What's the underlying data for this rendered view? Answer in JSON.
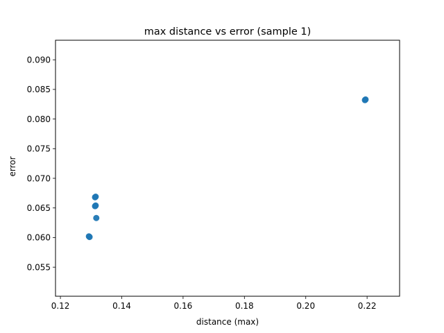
{
  "chart_data": {
    "type": "scatter",
    "title": "max distance vs error (sample 1)",
    "xlabel": "distance (max)",
    "ylabel": "error",
    "xlim": [
      0.1184,
      0.2306
    ],
    "ylim": [
      0.0501,
      0.0933
    ],
    "x_ticks": [
      0.12,
      0.14,
      0.16,
      0.18,
      0.2,
      0.22
    ],
    "x_tick_labels": [
      "0.12",
      "0.14",
      "0.16",
      "0.18",
      "0.20",
      "0.22"
    ],
    "y_ticks": [
      0.055,
      0.06,
      0.065,
      0.07,
      0.075,
      0.08,
      0.085,
      0.09
    ],
    "y_tick_labels": [
      "0.055",
      "0.060",
      "0.065",
      "0.070",
      "0.075",
      "0.080",
      "0.085",
      "0.090"
    ],
    "grid": false,
    "marker_color": "#1f77b4",
    "points": [
      {
        "x": 0.1293,
        "y": 0.0602
      },
      {
        "x": 0.1295,
        "y": 0.0601
      },
      {
        "x": 0.1313,
        "y": 0.0653
      },
      {
        "x": 0.1315,
        "y": 0.0654
      },
      {
        "x": 0.1313,
        "y": 0.0668
      },
      {
        "x": 0.1315,
        "y": 0.0669
      },
      {
        "x": 0.1317,
        "y": 0.0633
      },
      {
        "x": 0.2193,
        "y": 0.0832
      },
      {
        "x": 0.2195,
        "y": 0.0833
      }
    ]
  }
}
